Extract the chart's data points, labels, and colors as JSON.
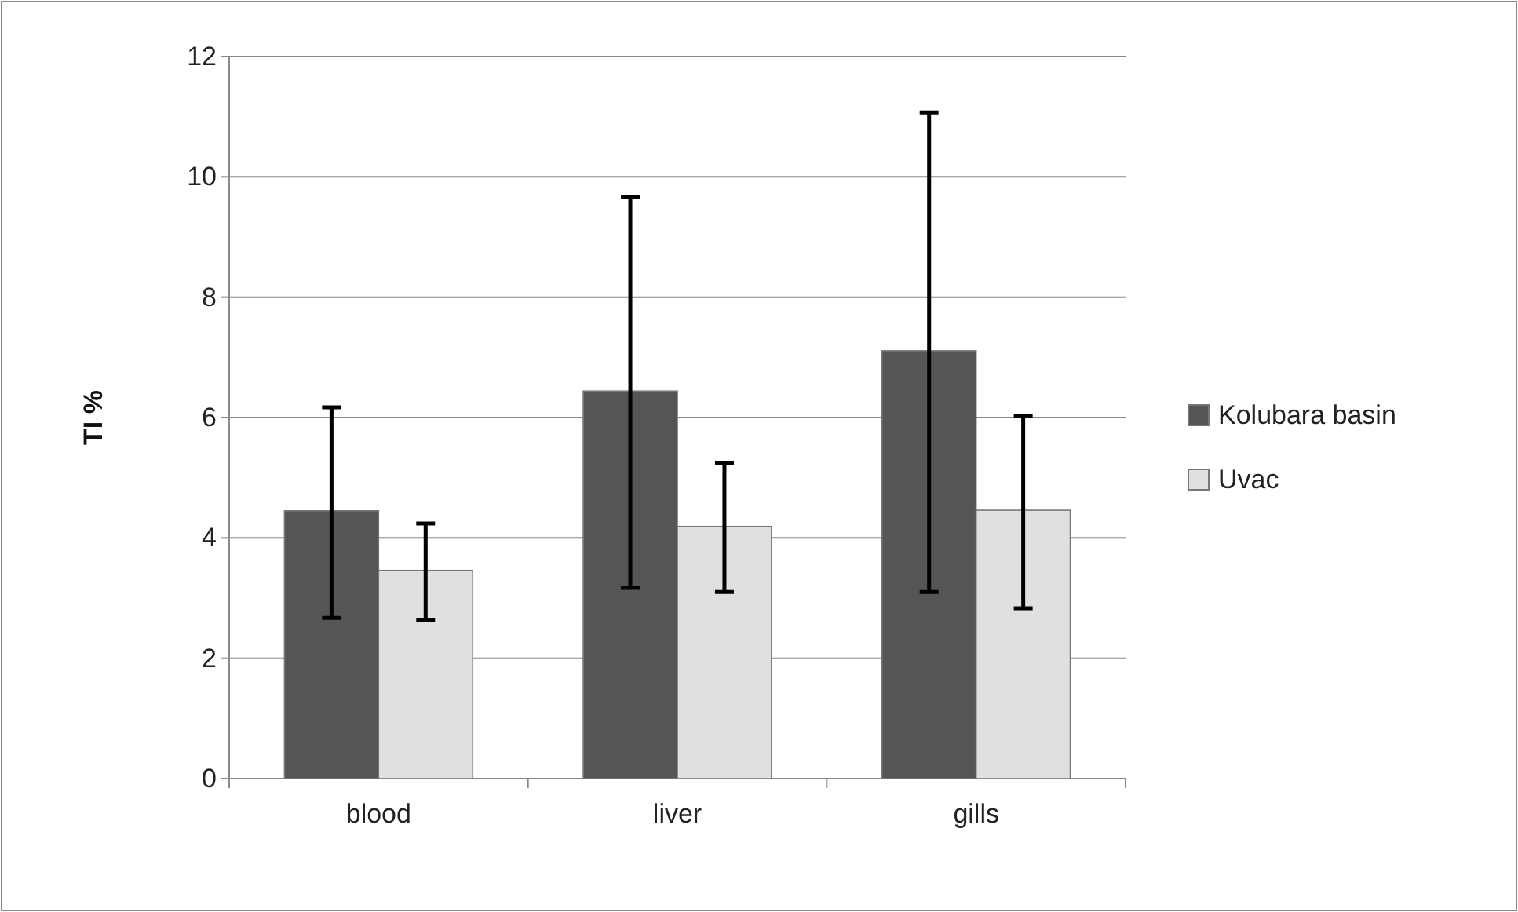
{
  "chart_data": {
    "type": "bar",
    "ylabel": "TI %",
    "categories": [
      "blood",
      "liver",
      "gills"
    ],
    "series": [
      {
        "name": "Kolubara basin",
        "color": "#555555",
        "values": [
          4.45,
          6.44,
          7.11
        ],
        "errors": [
          [
            2.67,
            6.17
          ],
          [
            3.17,
            9.67
          ],
          [
            3.1,
            11.07
          ]
        ]
      },
      {
        "name": "Uvac",
        "color": "#e0e0e0",
        "values": [
          3.46,
          4.19,
          4.46
        ],
        "errors": [
          [
            2.63,
            4.24
          ],
          [
            3.1,
            5.25
          ],
          [
            2.83,
            6.03
          ]
        ]
      }
    ],
    "ylim": [
      0,
      12
    ],
    "yticks": [
      0,
      2,
      4,
      6,
      8,
      10,
      12
    ],
    "grid": "y",
    "legend": "right"
  }
}
